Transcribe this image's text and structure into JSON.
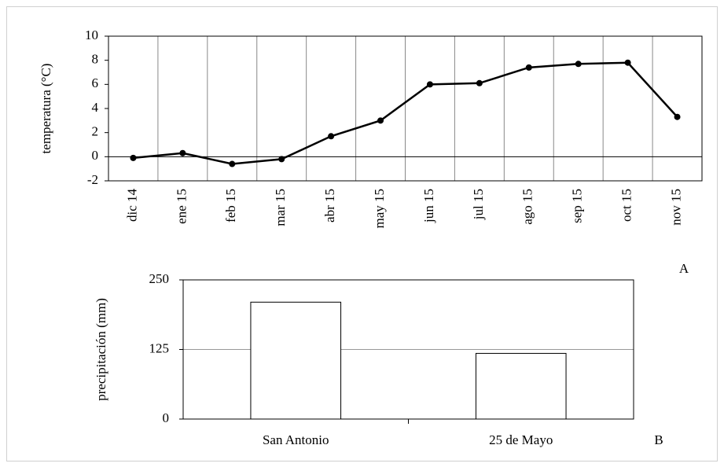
{
  "chart_data": [
    {
      "type": "line",
      "categories": [
        "dic 14",
        "ene 15",
        "feb 15",
        "mar 15",
        "abr 15",
        "may 15",
        "jun 15",
        "jul 15",
        "ago 15",
        "sep 15",
        "oct 15",
        "nov 15"
      ],
      "values": [
        -0.1,
        0.3,
        -0.6,
        -0.2,
        1.7,
        3.0,
        6.0,
        6.1,
        7.4,
        7.7,
        7.8,
        3.3
      ],
      "color": "#000000",
      "ylim": [
        -2,
        10
      ],
      "yticks": [
        -2,
        0,
        2,
        4,
        6,
        8,
        10
      ],
      "grid": false,
      "y_label": "temperatura  (°C)",
      "annotation": "A"
    },
    {
      "type": "bar",
      "categories": [
        "San Antonio",
        "25 de Mayo"
      ],
      "values": [
        210,
        118
      ],
      "color": "#ffffff",
      "ylim": [
        0,
        250
      ],
      "yticks": [
        0,
        125,
        250
      ],
      "grid": true,
      "y_label": "precipitación  (mm)",
      "annotation": "B"
    }
  ]
}
